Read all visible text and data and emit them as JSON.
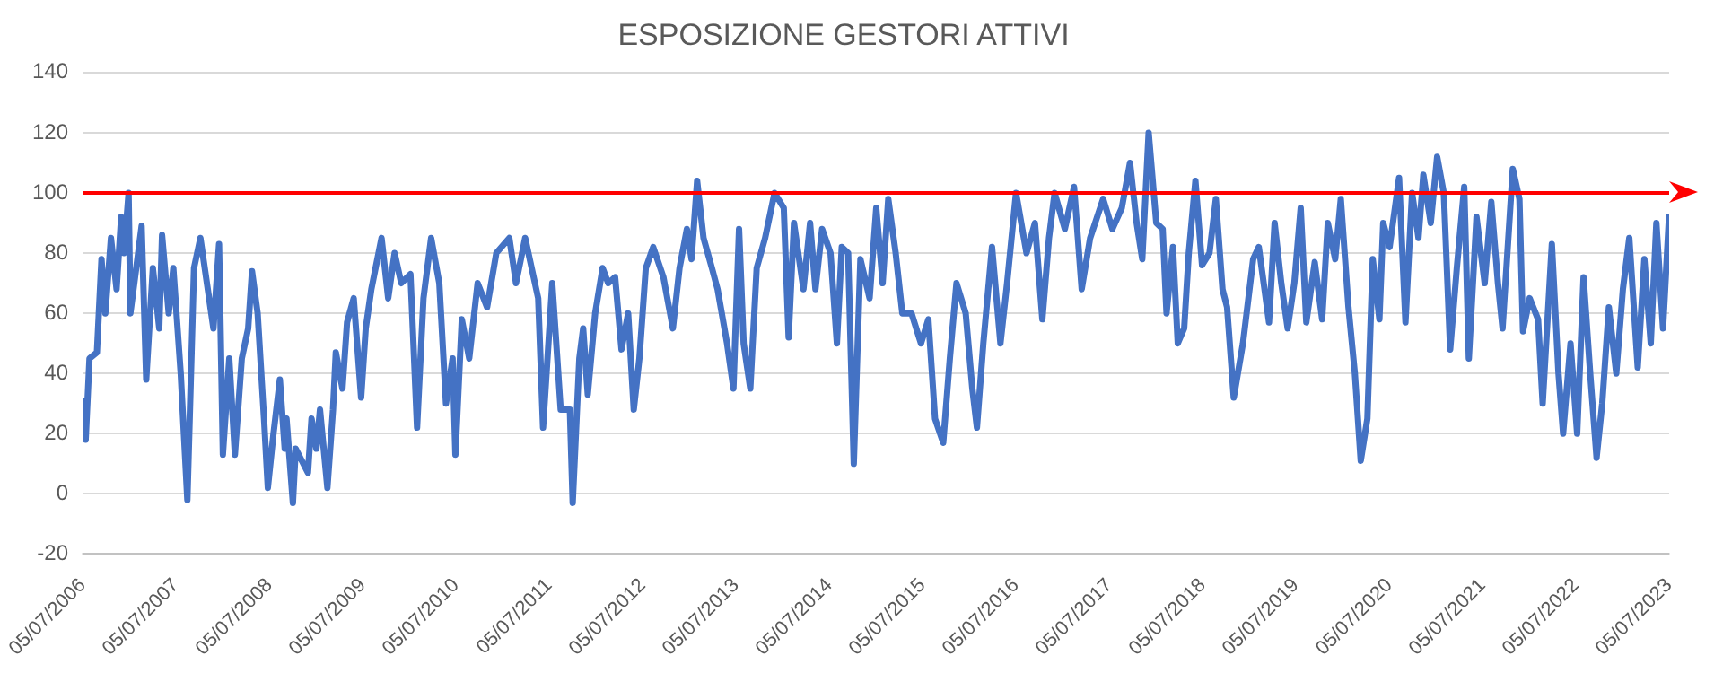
{
  "chart_data": {
    "type": "line",
    "title": "ESPOSIZIONE GESTORI ATTIVI",
    "color": "#4472c4",
    "grid": "y",
    "legend": false,
    "marker": "none",
    "line_style": "solid",
    "xlim": [
      "2006-07-05",
      "2023-07-05"
    ],
    "xticks": [
      {
        "value": "2006-07-05",
        "label": "05/07/2006"
      },
      {
        "value": "2007-07-05",
        "label": "05/07/2007"
      },
      {
        "value": "2008-07-05",
        "label": "05/07/2008"
      },
      {
        "value": "2009-07-05",
        "label": "05/07/2009"
      },
      {
        "value": "2010-07-05",
        "label": "05/07/2010"
      },
      {
        "value": "2011-07-05",
        "label": "05/07/2011"
      },
      {
        "value": "2012-07-05",
        "label": "05/07/2012"
      },
      {
        "value": "2013-07-05",
        "label": "05/07/2013"
      },
      {
        "value": "2014-07-05",
        "label": "05/07/2014"
      },
      {
        "value": "2015-07-05",
        "label": "05/07/2015"
      },
      {
        "value": "2016-07-05",
        "label": "05/07/2016"
      },
      {
        "value": "2017-07-05",
        "label": "05/07/2017"
      },
      {
        "value": "2018-07-05",
        "label": "05/07/2018"
      },
      {
        "value": "2019-07-05",
        "label": "05/07/2019"
      },
      {
        "value": "2020-07-05",
        "label": "05/07/2020"
      },
      {
        "value": "2021-07-05",
        "label": "05/07/2021"
      },
      {
        "value": "2022-07-05",
        "label": "05/07/2022"
      },
      {
        "value": "2023-07-05",
        "label": "05/07/2023"
      }
    ],
    "ylim": [
      -20,
      140
    ],
    "yticks": [
      -20,
      0,
      20,
      40,
      60,
      80,
      100,
      120,
      140
    ],
    "ref_lines": [
      {
        "axis": "y",
        "value": 100,
        "color": "#ff0000"
      }
    ],
    "x": [
      "2006-07-05",
      "2006-07-17",
      "2006-08-01",
      "2006-08-30",
      "2006-09-17",
      "2006-10-02",
      "2006-10-24",
      "2006-11-15",
      "2006-12-03",
      "2006-12-14",
      "2007-01-01",
      "2007-01-08",
      "2007-02-21",
      "2007-03-11",
      "2007-04-06",
      "2007-05-01",
      "2007-05-12",
      "2007-06-07",
      "2007-06-25",
      "2007-07-24",
      "2007-08-19",
      "2007-09-14",
      "2007-10-09",
      "2007-11-29",
      "2007-12-21",
      "2008-01-05",
      "2008-01-30",
      "2008-02-21",
      "2008-03-19",
      "2008-04-13",
      "2008-04-28",
      "2008-05-20",
      "2008-06-14",
      "2008-06-29",
      "2008-07-21",
      "2008-08-15",
      "2008-09-03",
      "2008-09-10",
      "2008-10-05",
      "2008-10-16",
      "2008-12-03",
      "2008-12-17",
      "2009-01-05",
      "2009-01-19",
      "2009-02-17",
      "2009-03-11",
      "2009-03-22",
      "2009-04-17",
      "2009-05-05",
      "2009-05-31",
      "2009-06-29",
      "2009-07-17",
      "2009-08-08",
      "2009-09-17",
      "2009-10-13",
      "2009-11-07",
      "2009-12-03",
      "2010-01-08",
      "2010-02-03",
      "2010-02-28",
      "2010-03-30",
      "2010-05-01",
      "2010-05-27",
      "2010-06-22",
      "2010-07-03",
      "2010-07-28",
      "2010-08-26",
      "2010-09-28",
      "2010-11-04",
      "2010-12-10",
      "2011-01-30",
      "2011-02-25",
      "2011-04-02",
      "2011-05-23",
      "2011-06-11",
      "2011-07-17",
      "2011-08-19",
      "2011-09-24",
      "2011-10-05",
      "2011-10-31",
      "2011-11-15",
      "2011-12-03",
      "2012-01-01",
      "2012-01-30",
      "2012-02-21",
      "2012-03-19",
      "2012-04-13",
      "2012-05-09",
      "2012-05-31",
      "2012-06-22",
      "2012-07-17",
      "2012-08-15",
      "2012-09-24",
      "2012-10-31",
      "2012-11-26",
      "2012-12-25",
      "2013-01-12",
      "2013-02-03",
      "2013-02-28",
      "2013-04-02",
      "2013-04-24",
      "2013-05-31",
      "2013-06-25",
      "2013-07-17",
      "2013-08-04",
      "2013-08-30",
      "2013-09-24",
      "2013-10-27",
      "2013-12-03",
      "2014-01-08",
      "2014-01-27",
      "2014-02-17",
      "2014-03-26",
      "2014-04-21",
      "2014-05-12",
      "2014-06-07",
      "2014-07-10",
      "2014-08-04",
      "2014-08-23",
      "2014-09-17",
      "2014-10-09",
      "2014-11-04",
      "2014-12-10",
      "2015-01-05",
      "2015-01-30",
      "2015-02-21",
      "2015-03-22",
      "2015-04-17",
      "2015-05-23",
      "2015-06-29",
      "2015-07-28",
      "2015-08-23",
      "2015-09-24",
      "2015-10-20",
      "2015-11-15",
      "2015-12-21",
      "2016-01-16",
      "2016-02-03",
      "2016-02-28",
      "2016-04-02",
      "2016-05-05",
      "2016-05-31",
      "2016-07-05",
      "2016-08-15",
      "2016-09-17",
      "2016-10-16",
      "2016-11-11",
      "2016-12-03",
      "2017-01-12",
      "2017-02-17",
      "2017-03-19",
      "2017-04-21",
      "2017-06-11",
      "2017-07-17",
      "2017-08-23",
      "2017-09-24",
      "2017-10-20",
      "2017-11-11",
      "2017-12-06",
      "2018-01-05",
      "2018-01-30",
      "2018-02-14",
      "2018-03-11",
      "2018-03-30",
      "2018-04-24",
      "2018-05-12",
      "2018-06-07",
      "2018-07-03",
      "2018-08-01",
      "2018-08-26",
      "2018-09-21",
      "2018-10-09",
      "2018-11-04",
      "2018-12-10",
      "2019-01-19",
      "2019-02-10",
      "2019-03-22",
      "2019-04-13",
      "2019-05-09",
      "2019-06-03",
      "2019-06-29",
      "2019-07-24",
      "2019-08-15",
      "2019-09-17",
      "2019-10-16",
      "2019-11-07",
      "2019-12-06",
      "2019-12-28",
      "2020-01-27",
      "2020-02-21",
      "2020-03-15",
      "2020-04-10",
      "2020-05-01",
      "2020-05-27",
      "2020-06-11",
      "2020-07-06",
      "2020-08-12",
      "2020-09-06",
      "2020-10-02",
      "2020-10-27",
      "2020-11-15",
      "2020-12-14",
      "2021-01-08",
      "2021-02-03",
      "2021-02-28",
      "2021-03-26",
      "2021-04-24",
      "2021-05-12",
      "2021-06-11",
      "2021-07-13",
      "2021-08-08",
      "2021-09-03",
      "2021-09-21",
      "2021-10-31",
      "2021-11-26",
      "2021-12-10",
      "2022-01-05",
      "2022-02-07",
      "2022-02-25",
      "2022-04-02",
      "2022-04-28",
      "2022-05-16",
      "2022-06-14",
      "2022-07-10",
      "2022-08-04",
      "2022-08-30",
      "2022-09-24",
      "2022-10-16",
      "2022-11-11",
      "2022-12-10",
      "2023-01-05",
      "2023-01-30",
      "2023-03-04",
      "2023-03-30",
      "2023-04-24",
      "2023-05-16",
      "2023-06-11",
      "2023-07-05"
    ],
    "values": [
      32,
      18,
      45,
      47,
      78,
      60,
      85,
      68,
      92,
      80,
      100,
      60,
      89,
      38,
      75,
      55,
      86,
      60,
      75,
      40,
      -2,
      75,
      85,
      55,
      83,
      13,
      45,
      13,
      45,
      55,
      74,
      60,
      25,
      2,
      20,
      38,
      15,
      25,
      -3,
      15,
      7,
      25,
      15,
      28,
      2,
      28,
      47,
      35,
      57,
      65,
      32,
      55,
      68,
      85,
      65,
      80,
      70,
      73,
      22,
      65,
      85,
      70,
      30,
      45,
      13,
      58,
      45,
      70,
      62,
      80,
      85,
      70,
      85,
      65,
      22,
      70,
      28,
      28,
      -3,
      45,
      55,
      33,
      60,
      75,
      70,
      72,
      48,
      60,
      28,
      45,
      75,
      82,
      72,
      55,
      75,
      88,
      78,
      104,
      85,
      75,
      68,
      50,
      35,
      88,
      50,
      35,
      75,
      85,
      100,
      95,
      52,
      90,
      68,
      90,
      68,
      88,
      80,
      50,
      82,
      80,
      10,
      78,
      65,
      95,
      70,
      98,
      80,
      60,
      60,
      50,
      58,
      25,
      17,
      45,
      70,
      60,
      35,
      22,
      50,
      82,
      50,
      70,
      100,
      80,
      90,
      58,
      85,
      100,
      88,
      102,
      68,
      85,
      98,
      88,
      95,
      110,
      90,
      78,
      120,
      90,
      88,
      60,
      82,
      50,
      55,
      80,
      104,
      76,
      80,
      98,
      68,
      62,
      32,
      50,
      78,
      82,
      57,
      90,
      70,
      55,
      70,
      95,
      57,
      77,
      58,
      90,
      78,
      98,
      62,
      40,
      11,
      25,
      78,
      58,
      90,
      82,
      105,
      57,
      100,
      85,
      106,
      90,
      112,
      100,
      48,
      75,
      102,
      45,
      92,
      70,
      97,
      70,
      55,
      108,
      98,
      54,
      65,
      58,
      30,
      83,
      40,
      20,
      50,
      20,
      72,
      40,
      12,
      30,
      62,
      40,
      68,
      85,
      42,
      78,
      50,
      90,
      55,
      93
    ]
  }
}
